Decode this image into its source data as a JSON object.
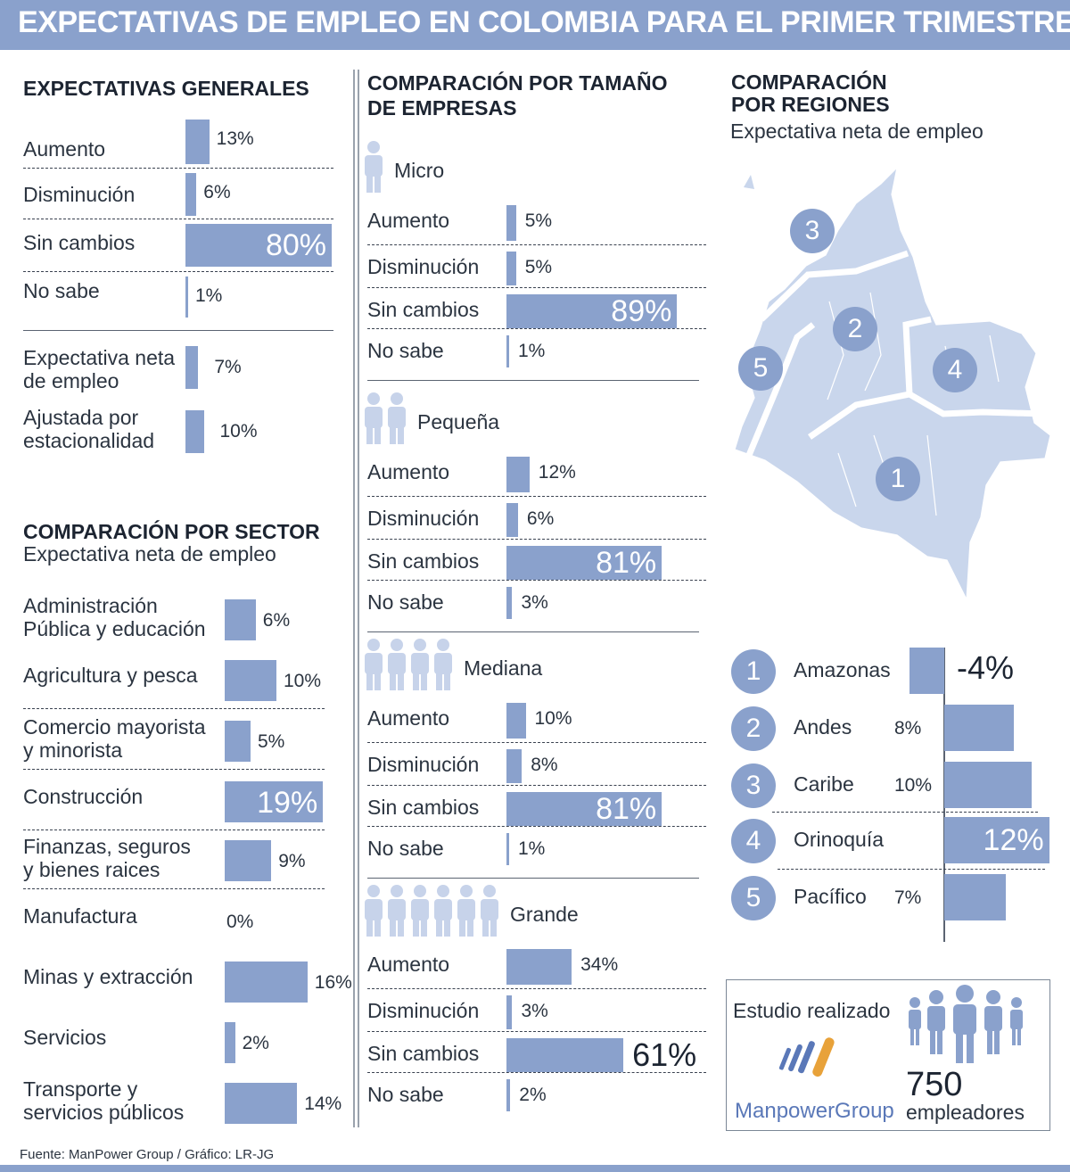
{
  "header": {
    "title": "EXPECTATIVAS DE EMPLEO EN COLOMBIA PARA EL PRIMER TRIMESTRE"
  },
  "general": {
    "title": "EXPECTATIVAS GENERALES",
    "items": [
      {
        "label": "Aumento",
        "value": "13%"
      },
      {
        "label": "Disminución",
        "value": "6%"
      },
      {
        "label": "Sin cambios",
        "value": "80%"
      },
      {
        "label": "No sabe",
        "value": "1%"
      }
    ],
    "net": [
      {
        "label_1": "Expectativa neta",
        "label_2": "de empleo",
        "value": "7%"
      },
      {
        "label_1": "Ajustada por",
        "label_2": "estacionalidad",
        "value": "10%"
      }
    ]
  },
  "sector": {
    "title": "COMPARACIÓN POR SECTOR",
    "subtitle": "Expectativa neta de empleo",
    "items": [
      {
        "label_1": "Administración",
        "label_2": "Pública y educación",
        "value": "6%"
      },
      {
        "label_1": "Agricultura y pesca",
        "label_2": "",
        "value": "10%"
      },
      {
        "label_1": "Comercio mayorista",
        "label_2": "y minorista",
        "value": "5%"
      },
      {
        "label_1": "Construcción",
        "label_2": "",
        "value": "19%"
      },
      {
        "label_1": "Finanzas, seguros",
        "label_2": "y bienes raices",
        "value": "9%"
      },
      {
        "label_1": "Manufactura",
        "label_2": "",
        "value": "0%"
      },
      {
        "label_1": "Minas y extracción",
        "label_2": "",
        "value": "16%"
      },
      {
        "label_1": "Servicios",
        "label_2": "",
        "value": "2%"
      },
      {
        "label_1": "Transporte y",
        "label_2": "servicios públicos",
        "value": "14%"
      }
    ]
  },
  "size": {
    "title_1": "COMPARACIÓN POR TAMAÑO",
    "title_2": "DE EMPRESAS",
    "groups": [
      {
        "name": "Micro",
        "icon": "person-icon",
        "items": [
          {
            "label": "Aumento",
            "value": "5%"
          },
          {
            "label": "Disminución",
            "value": "5%"
          },
          {
            "label": "Sin cambios",
            "value": "89%"
          },
          {
            "label": "No sabe",
            "value": "1%"
          }
        ]
      },
      {
        "name": "Pequeña",
        "icon": "person-icon",
        "items": [
          {
            "label": "Aumento",
            "value": "12%"
          },
          {
            "label": "Disminución",
            "value": "6%"
          },
          {
            "label": "Sin cambios",
            "value": "81%"
          },
          {
            "label": "No sabe",
            "value": "3%"
          }
        ]
      },
      {
        "name": "Mediana",
        "icon": "person-icon",
        "items": [
          {
            "label": "Aumento",
            "value": "10%"
          },
          {
            "label": "Disminución",
            "value": "8%"
          },
          {
            "label": "Sin cambios",
            "value": "81%"
          },
          {
            "label": "No sabe",
            "value": "1%"
          }
        ]
      },
      {
        "name": "Grande",
        "icon": "person-icon",
        "items": [
          {
            "label": "Aumento",
            "value": "34%"
          },
          {
            "label": "Disminución",
            "value": "3%"
          },
          {
            "label": "Sin cambios",
            "value": "61%"
          },
          {
            "label": "No sabe",
            "value": "2%"
          }
        ]
      }
    ]
  },
  "regions": {
    "title_1": "COMPARACIÓN",
    "title_2": "POR REGIONES",
    "subtitle": "Expectativa neta de empleo",
    "map_icon": "colombia-map-icon",
    "map_numbers": [
      "1",
      "2",
      "3",
      "4",
      "5"
    ],
    "items": [
      {
        "num": "1",
        "name": "Amazonas",
        "value": "-4%"
      },
      {
        "num": "2",
        "name": "Andes",
        "value": "8%"
      },
      {
        "num": "3",
        "name": "Caribe",
        "value": "10%"
      },
      {
        "num": "4",
        "name": "Orinoquía",
        "value": "12%"
      },
      {
        "num": "5",
        "name": "Pacífico",
        "value": "7%"
      }
    ]
  },
  "study": {
    "label": "Estudio realizado",
    "logo_text": "ManpowerGroup",
    "count": "750",
    "count_label": "empleadores",
    "icon": "people-group-icon"
  },
  "footer": {
    "source": "Fuente: ManPower Group / Gráfico: LR-JG"
  },
  "colors": {
    "accent": "#8aa1cc",
    "icon": "#c7d3ea",
    "map": "#c9d6ec",
    "logo_blue": "#5a78b8",
    "logo_orange": "#e8a23a"
  },
  "chart_data": [
    {
      "type": "bar",
      "title": "EXPECTATIVAS GENERALES",
      "categories": [
        "Aumento",
        "Disminución",
        "Sin cambios",
        "No sabe"
      ],
      "values": [
        13,
        6,
        80,
        1
      ]
    },
    {
      "type": "bar",
      "title": "EXPECTATIVAS GENERALES",
      "categories": [
        "Expectativa neta de empleo",
        "Ajustada por estacionalidad"
      ],
      "values": [
        7,
        10
      ]
    },
    {
      "type": "bar",
      "title": "COMPARACIÓN POR SECTOR",
      "subtitle": "Expectativa neta de empleo",
      "categories": [
        "Administración Pública y educación",
        "Agricultura y pesca",
        "Comercio mayorista y minorista",
        "Construcción",
        "Finanzas, seguros y bienes raices",
        "Manufactura",
        "Minas y extracción",
        "Servicios",
        "Transporte y servicios públicos"
      ],
      "values": [
        6,
        10,
        5,
        19,
        9,
        0,
        16,
        2,
        14
      ]
    },
    {
      "type": "bar",
      "title": "COMPARACIÓN POR TAMAÑO DE EMPRESAS",
      "categories": [
        "Aumento",
        "Disminución",
        "Sin cambios",
        "No sabe"
      ],
      "series": [
        {
          "name": "Micro",
          "values": [
            5,
            5,
            89,
            1
          ]
        },
        {
          "name": "Pequeña",
          "values": [
            12,
            6,
            81,
            3
          ]
        },
        {
          "name": "Mediana",
          "values": [
            10,
            8,
            81,
            1
          ]
        },
        {
          "name": "Grande",
          "values": [
            34,
            3,
            61,
            2
          ]
        }
      ]
    },
    {
      "type": "bar",
      "title": "COMPARACIÓN POR REGIONES",
      "subtitle": "Expectativa neta de empleo",
      "categories": [
        "Amazonas",
        "Andes",
        "Caribe",
        "Orinoquía",
        "Pacífico"
      ],
      "values": [
        -4,
        8,
        10,
        12,
        7
      ]
    }
  ]
}
